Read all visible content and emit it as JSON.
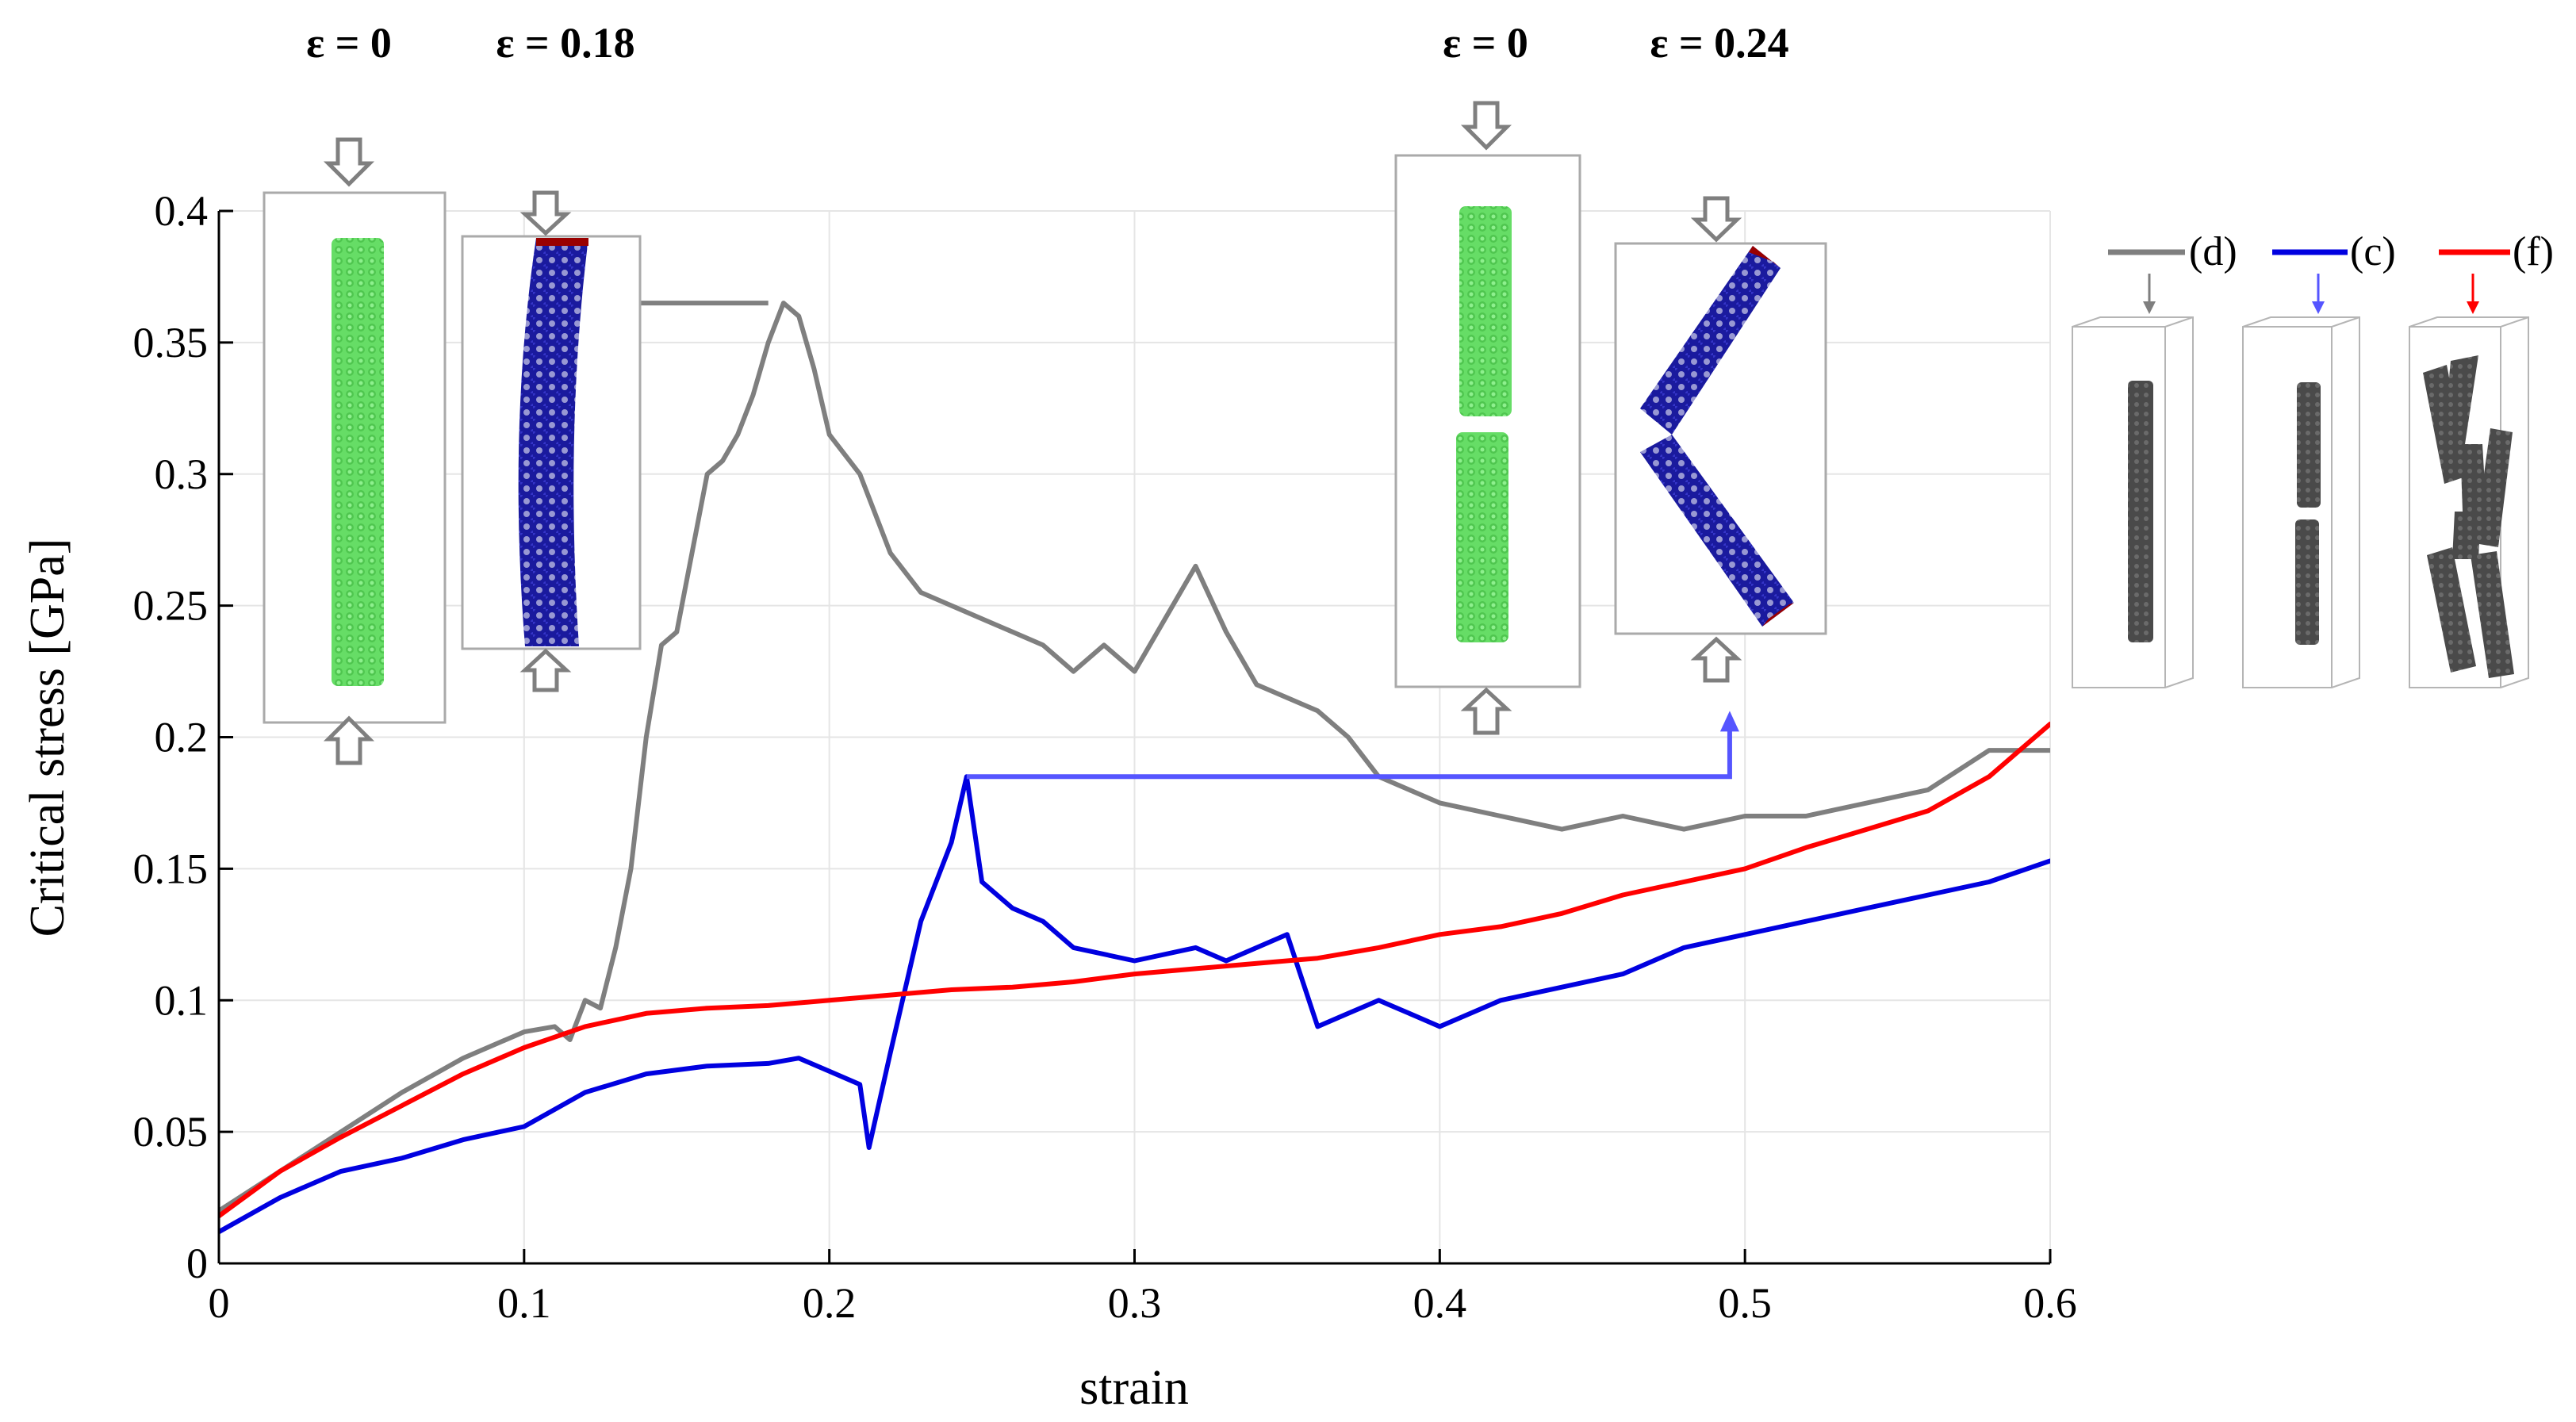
{
  "chart_data": {
    "type": "line",
    "xlabel": "strain",
    "ylabel": "Critical stress [GPa]",
    "xlim": [
      0,
      0.6
    ],
    "ylim": [
      0,
      0.4
    ],
    "xticks": [
      "0",
      "0.1",
      "0.2",
      "0.3",
      "0.4",
      "0.5",
      "0.6"
    ],
    "yticks": [
      "0",
      "0.05",
      "0.1",
      "0.15",
      "0.2",
      "0.25",
      "0.3",
      "0.35",
      "0.4"
    ],
    "grid": true,
    "legend_position": "top-right",
    "series": [
      {
        "name": "(d)",
        "color": "#7f7f7f",
        "x": [
          0,
          0.02,
          0.04,
          0.06,
          0.08,
          0.1,
          0.11,
          0.115,
          0.12,
          0.125,
          0.13,
          0.135,
          0.14,
          0.145,
          0.15,
          0.155,
          0.16,
          0.165,
          0.17,
          0.175,
          0.18,
          0.185,
          0.19,
          0.195,
          0.2,
          0.21,
          0.22,
          0.23,
          0.24,
          0.25,
          0.26,
          0.27,
          0.28,
          0.29,
          0.3,
          0.31,
          0.32,
          0.33,
          0.34,
          0.35,
          0.36,
          0.37,
          0.38,
          0.39,
          0.4,
          0.42,
          0.44,
          0.46,
          0.48,
          0.5,
          0.52,
          0.54,
          0.56,
          0.58,
          0.6
        ],
        "y": [
          0.02,
          0.035,
          0.05,
          0.065,
          0.078,
          0.088,
          0.09,
          0.085,
          0.1,
          0.097,
          0.12,
          0.15,
          0.2,
          0.235,
          0.24,
          0.27,
          0.3,
          0.305,
          0.315,
          0.33,
          0.35,
          0.365,
          0.36,
          0.34,
          0.315,
          0.3,
          0.27,
          0.255,
          0.25,
          0.245,
          0.24,
          0.235,
          0.225,
          0.235,
          0.225,
          0.245,
          0.265,
          0.24,
          0.22,
          0.215,
          0.21,
          0.2,
          0.185,
          0.18,
          0.175,
          0.17,
          0.165,
          0.17,
          0.165,
          0.17,
          0.17,
          0.175,
          0.18,
          0.195,
          0.195
        ]
      },
      {
        "name": "(c)",
        "color": "#0000e0",
        "x": [
          0,
          0.02,
          0.04,
          0.06,
          0.08,
          0.1,
          0.12,
          0.14,
          0.16,
          0.18,
          0.19,
          0.2,
          0.21,
          0.213,
          0.22,
          0.23,
          0.24,
          0.245,
          0.25,
          0.26,
          0.27,
          0.28,
          0.3,
          0.32,
          0.33,
          0.35,
          0.36,
          0.37,
          0.38,
          0.39,
          0.4,
          0.42,
          0.44,
          0.46,
          0.48,
          0.5,
          0.52,
          0.54,
          0.56,
          0.58,
          0.6
        ],
        "y": [
          0.012,
          0.025,
          0.035,
          0.04,
          0.047,
          0.052,
          0.065,
          0.072,
          0.075,
          0.076,
          0.078,
          0.073,
          0.068,
          0.044,
          0.08,
          0.13,
          0.16,
          0.185,
          0.145,
          0.135,
          0.13,
          0.12,
          0.115,
          0.12,
          0.115,
          0.125,
          0.09,
          0.095,
          0.1,
          0.095,
          0.09,
          0.1,
          0.105,
          0.11,
          0.12,
          0.125,
          0.13,
          0.135,
          0.14,
          0.145,
          0.153
        ]
      },
      {
        "name": "(f)",
        "color": "#ff0000",
        "x": [
          0,
          0.02,
          0.04,
          0.06,
          0.08,
          0.1,
          0.12,
          0.14,
          0.16,
          0.18,
          0.2,
          0.22,
          0.24,
          0.26,
          0.28,
          0.3,
          0.32,
          0.34,
          0.36,
          0.38,
          0.4,
          0.42,
          0.44,
          0.46,
          0.48,
          0.5,
          0.52,
          0.54,
          0.56,
          0.58,
          0.6
        ],
        "y": [
          0.018,
          0.035,
          0.048,
          0.06,
          0.072,
          0.082,
          0.09,
          0.095,
          0.097,
          0.098,
          0.1,
          0.102,
          0.104,
          0.105,
          0.107,
          0.11,
          0.112,
          0.114,
          0.116,
          0.12,
          0.125,
          0.128,
          0.133,
          0.14,
          0.145,
          0.15,
          0.158,
          0.165,
          0.172,
          0.185,
          0.205
        ]
      }
    ],
    "annotations": {
      "left_group": {
        "label_initial": "ε = 0",
        "label_buckled": "ε = 0.18"
      },
      "right_group": {
        "label_initial": "ε = 0",
        "label_buckled": "ε = 0.24"
      }
    },
    "connectors": {
      "gray_arrow": {
        "from": [
          0.18,
          0.365
        ],
        "to": [
          0.145,
          0.365
        ]
      },
      "blue_bracket": {
        "from": [
          0.245,
          0.185
        ],
        "corner": [
          0.495,
          0.185
        ],
        "to": [
          0.495,
          0.21
        ]
      }
    }
  },
  "colors": {
    "structure_green": "#66dd66",
    "structure_blue": "#1a1a9e",
    "structure_tip": "#990000",
    "structure_gray": "#4a4a4a",
    "arrow_gray": "#808080",
    "axis": "#000000",
    "grid": "#e5e5e5"
  }
}
